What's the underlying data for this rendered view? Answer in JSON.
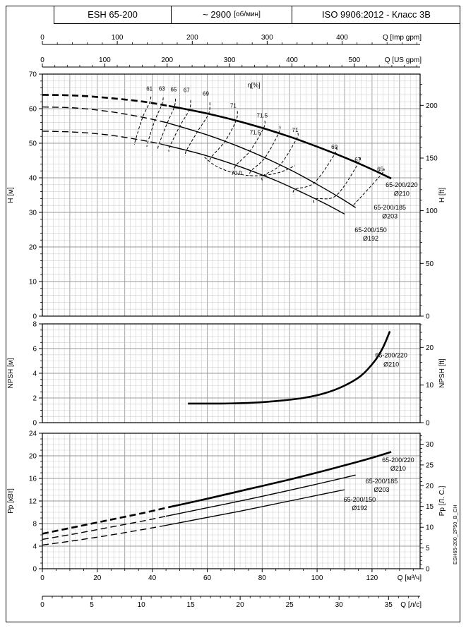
{
  "header": {
    "model": "ESH 65-200",
    "speed_value": "~ 2900",
    "speed_unit": "[об/мин]",
    "standard": "ISO 9906:2012 - Класс 3В"
  },
  "side_code": "ESH65-200_2P50_B_CH",
  "colors": {
    "curve": "#000000",
    "grid_minor": "#cfcfcf",
    "grid_major": "#9a9a9a",
    "frame": "#000000"
  },
  "x_axes": [
    {
      "id": "imp-gpm",
      "title": "Q [Imp gpm]",
      "labels": [
        0,
        100,
        200,
        300,
        400
      ],
      "minor": 20,
      "factor": 0.27276
    },
    {
      "id": "us-gpm",
      "title": "Q [US gpm]",
      "labels": [
        0,
        100,
        200,
        300,
        400,
        500
      ],
      "minor": 20,
      "factor": 0.22712
    },
    {
      "id": "m3h",
      "title": "Q [м³/ч]",
      "labels": [
        0,
        20,
        40,
        60,
        80,
        100,
        120
      ],
      "minor": 5,
      "factor": 1
    },
    {
      "id": "ls",
      "title": "Q [л/с]",
      "labels": [
        0,
        5,
        10,
        15,
        20,
        25,
        30,
        35
      ],
      "minor": 1,
      "factor": 3.6
    }
  ],
  "chart_data": [
    {
      "id": "head",
      "type": "line",
      "title": "Head curves",
      "ylabel_left": "H [м]",
      "ylabel_right": "H [ft]",
      "xlim": [
        0,
        137.5
      ],
      "ylim": [
        0,
        70
      ],
      "yticks": [
        0,
        10,
        20,
        30,
        40,
        50,
        60,
        70
      ],
      "y_minor": 2,
      "x_minor": 2,
      "x_major": 10,
      "right_axis": {
        "unit": "ft",
        "labels": [
          0,
          50,
          100,
          150,
          200
        ],
        "to_left_factor": 0.3048,
        "minor": 10
      },
      "series": [
        {
          "name": "65-200/220 Ø210",
          "width": 2.6,
          "dash": [
            [
              0,
              64
            ],
            [
              12,
              63.8
            ],
            [
              24,
              63.1
            ],
            [
              36,
              62.1
            ],
            [
              46,
              60.8
            ]
          ],
          "solid": [
            [
              46,
              60.8
            ],
            [
              60,
              58.6
            ],
            [
              75,
              55.6
            ],
            [
              90,
              51.9
            ],
            [
              105,
              47.5
            ],
            [
              115,
              44.2
            ],
            [
              122,
              41.7
            ],
            [
              127,
              39.8
            ]
          ]
        },
        {
          "name": "65-200/185 Ø203",
          "width": 1.4,
          "dash": [
            [
              0,
              60.5
            ],
            [
              12,
              60.2
            ],
            [
              24,
              59.2
            ],
            [
              36,
              57.6
            ],
            [
              45,
              56
            ]
          ],
          "solid": [
            [
              45,
              56
            ],
            [
              60,
              52.4
            ],
            [
              75,
              47.9
            ],
            [
              90,
              42.4
            ],
            [
              100,
              38.1
            ],
            [
              108,
              34.4
            ],
            [
              114,
              31.4
            ]
          ]
        },
        {
          "name": "65-200/150 Ø192",
          "width": 1.4,
          "dash": [
            [
              0,
              53.5
            ],
            [
              12,
              53.2
            ],
            [
              24,
              52.4
            ],
            [
              36,
              50.9
            ],
            [
              43,
              49.8
            ]
          ],
          "solid": [
            [
              43,
              49.8
            ],
            [
              58,
              46.8
            ],
            [
              72,
              43.2
            ],
            [
              85,
              39.2
            ],
            [
              95,
              35.6
            ],
            [
              103,
              32.5
            ],
            [
              110,
              29.5
            ]
          ]
        }
      ],
      "contours": [
        {
          "value": "61",
          "points": [
            [
              39.5,
              63.5
            ],
            [
              39,
              61.7
            ],
            [
              36.5,
              57.5
            ],
            [
              34,
              51.2
            ],
            [
              33.5,
              49.6
            ]
          ]
        },
        {
          "value": "63",
          "points": [
            [
              44,
              63.2
            ],
            [
              43.5,
              61.2
            ],
            [
              41,
              56.7
            ],
            [
              38.5,
              50.6
            ],
            [
              38,
              49
            ]
          ]
        },
        {
          "value": "65",
          "points": [
            [
              48.5,
              62.9
            ],
            [
              48,
              60.5
            ],
            [
              45.5,
              55.9
            ],
            [
              42.5,
              49.9
            ],
            [
              42,
              48.3
            ]
          ]
        },
        {
          "value": "67",
          "points": [
            [
              54,
              62.5
            ],
            [
              53.5,
              59.7
            ],
            [
              50,
              54.9
            ],
            [
              46.5,
              49.2
            ],
            [
              46,
              47.6
            ]
          ]
        },
        {
          "value": "69",
          "points": [
            [
              61,
              61.8
            ],
            [
              60.5,
              58.5
            ],
            [
              56.5,
              53.4
            ],
            [
              52.5,
              48
            ],
            [
              52,
              46.4
            ]
          ]
        },
        {
          "value": "71",
          "points": [
            [
              71,
              59.3
            ],
            [
              70.5,
              56.5
            ],
            [
              66.5,
              50.6
            ],
            [
              61.5,
              46
            ],
            [
              61,
              44.5
            ]
          ]
        },
        {
          "value": "71.5L",
          "points": [
            [
              81,
              56.5
            ],
            [
              80.5,
              54.3
            ],
            [
              75.5,
              47.7
            ],
            [
              70.5,
              43.65
            ],
            [
              70,
              42.2
            ]
          ]
        },
        {
          "value": "71.5R",
          "points": [
            [
              86.5,
              55
            ],
            [
              86,
              52.9
            ],
            [
              81,
              45.8
            ],
            [
              76,
              42.05
            ],
            [
              75.5,
              40.6
            ]
          ]
        },
        {
          "value": "71R",
          "points": [
            [
              93,
              53
            ],
            [
              92.5,
              51.2
            ],
            [
              86.5,
              43.7
            ],
            [
              80.5,
              40.7
            ],
            [
              80,
              39.2
            ]
          ]
        },
        {
          "value": "69R",
          "points": [
            [
              107,
              48.8
            ],
            [
              106.5,
              47
            ],
            [
              99,
              38.6
            ],
            [
              92,
              36.7
            ],
            [
              91.5,
              35.2
            ]
          ]
        },
        {
          "value": "67R",
          "points": [
            [
              115.5,
              45.8
            ],
            [
              115,
              44.2
            ],
            [
              107,
              34.9
            ],
            [
              99.5,
              33.9
            ],
            [
              99,
              32.4
            ]
          ]
        },
        {
          "value": "65R",
          "points": [
            [
              124,
              42.7
            ],
            [
              123.5,
              41.1
            ],
            [
              113,
              31.9
            ]
          ]
        },
        {
          "value": "70.0",
          "points": [
            [
              59,
              46
            ],
            [
              63,
              43.5
            ],
            [
              70,
              41.3
            ],
            [
              78,
              40.6
            ],
            [
              86,
              41.5
            ],
            [
              92,
              43.5
            ]
          ]
        }
      ],
      "labels": [
        {
          "text": "η[%]",
          "x": 77,
          "y": 66.2,
          "size": 9
        },
        {
          "text": "61",
          "x": 39,
          "y": 65.2,
          "size": 8
        },
        {
          "text": "63",
          "x": 43.5,
          "y": 65.2,
          "size": 8
        },
        {
          "text": "65",
          "x": 47.8,
          "y": 65,
          "size": 8
        },
        {
          "text": "67",
          "x": 52.5,
          "y": 64.8,
          "size": 8
        },
        {
          "text": "69",
          "x": 59.5,
          "y": 63.8,
          "size": 8
        },
        {
          "text": "71",
          "x": 69.5,
          "y": 60.3,
          "size": 8
        },
        {
          "text": "71.5",
          "x": 80,
          "y": 57.5,
          "size": 8
        },
        {
          "text": "71.5",
          "x": 77.5,
          "y": 52.6,
          "size": 8
        },
        {
          "text": "71",
          "x": 92,
          "y": 53.3,
          "size": 8
        },
        {
          "text": "69",
          "x": 106.3,
          "y": 48.4,
          "size": 8
        },
        {
          "text": "67",
          "x": 114.8,
          "y": 44.7,
          "size": 8
        },
        {
          "text": "65",
          "x": 123,
          "y": 41.9,
          "size": 8
        },
        {
          "text": "70.0",
          "x": 70.7,
          "y": 40.8,
          "size": 8
        },
        {
          "text": "65-200/220",
          "x": 130.8,
          "y": 37.3,
          "size": 9
        },
        {
          "text": "Ø210",
          "x": 130.8,
          "y": 34.8,
          "size": 9
        },
        {
          "text": "65-200/185",
          "x": 126.5,
          "y": 30.8,
          "size": 9
        },
        {
          "text": "Ø203",
          "x": 126.5,
          "y": 28.3,
          "size": 9
        },
        {
          "text": "65-200/150",
          "x": 119.5,
          "y": 24.3,
          "size": 9
        },
        {
          "text": "Ø192",
          "x": 119.5,
          "y": 21.8,
          "size": 9
        }
      ]
    },
    {
      "id": "npsh",
      "type": "line",
      "title": "NPSH curve",
      "ylabel_left": "NPSH [м]",
      "ylabel_right": "NPSH [ft]",
      "xlim": [
        0,
        137.5
      ],
      "ylim": [
        0,
        8
      ],
      "yticks": [
        0,
        2,
        4,
        6,
        8
      ],
      "y_minor": 0.5,
      "x_minor": 2,
      "x_major": 10,
      "right_axis": {
        "unit": "ft",
        "labels": [
          0,
          10,
          20
        ],
        "to_left_factor": 0.3048,
        "minor": 2
      },
      "series": [
        {
          "name": "65-200/220 Ø210",
          "width": 2.6,
          "dash": [],
          "solid": [
            [
              53,
              1.55
            ],
            [
              65,
              1.55
            ],
            [
              75,
              1.6
            ],
            [
              85,
              1.75
            ],
            [
              95,
              2
            ],
            [
              103,
              2.4
            ],
            [
              110,
              3
            ],
            [
              116,
              3.8
            ],
            [
              121,
              5
            ],
            [
              124,
              6.1
            ],
            [
              126.5,
              7.4
            ]
          ]
        }
      ],
      "contours": [],
      "labels": [
        {
          "text": "65-200/220",
          "x": 127,
          "y": 5.3,
          "size": 9
        },
        {
          "text": "Ø210",
          "x": 127,
          "y": 4.55,
          "size": 9
        }
      ]
    },
    {
      "id": "power",
      "type": "line",
      "title": "Power curves",
      "ylabel_left": "Pp [кВт]",
      "ylabel_right": "Pp [Л. С.]",
      "xlim": [
        0,
        137.5
      ],
      "ylim": [
        0,
        24
      ],
      "yticks": [
        0,
        4,
        8,
        12,
        16,
        20,
        24
      ],
      "y_minor": 1,
      "x_minor": 2,
      "x_major": 10,
      "right_axis": {
        "unit": "л.с.",
        "labels": [
          0,
          5,
          10,
          15,
          20,
          25,
          30
        ],
        "to_left_factor": 0.7355,
        "minor": 1
      },
      "series": [
        {
          "name": "65-200/220 Ø210",
          "width": 2.6,
          "dash": [
            [
              0,
              6.2
            ],
            [
              12,
              7.4
            ],
            [
              24,
              8.6
            ],
            [
              36,
              9.8
            ],
            [
              46,
              10.9
            ]
          ],
          "solid": [
            [
              46,
              10.9
            ],
            [
              60,
              12.4
            ],
            [
              75,
              14.1
            ],
            [
              90,
              15.8
            ],
            [
              103,
              17.4
            ],
            [
              113,
              18.7
            ],
            [
              121,
              19.8
            ],
            [
              127,
              20.7
            ]
          ]
        },
        {
          "name": "65-200/185 Ø203",
          "width": 1.4,
          "dash": [
            [
              0,
              5.2
            ],
            [
              12,
              6.2
            ],
            [
              24,
              7.3
            ],
            [
              36,
              8.4
            ],
            [
              45,
              9.3
            ]
          ],
          "solid": [
            [
              45,
              9.3
            ],
            [
              60,
              10.8
            ],
            [
              75,
              12.3
            ],
            [
              90,
              13.9
            ],
            [
              100,
              15
            ],
            [
              108,
              15.9
            ],
            [
              114,
              16.6
            ]
          ]
        },
        {
          "name": "65-200/150 Ø192",
          "width": 1.4,
          "dash": [
            [
              0,
              4.2
            ],
            [
              12,
              5
            ],
            [
              24,
              5.9
            ],
            [
              36,
              6.9
            ],
            [
              43,
              7.5
            ]
          ],
          "solid": [
            [
              43,
              7.5
            ],
            [
              58,
              8.9
            ],
            [
              72,
              10.2
            ],
            [
              85,
              11.5
            ],
            [
              95,
              12.5
            ],
            [
              103,
              13.3
            ],
            [
              110,
              14
            ]
          ]
        }
      ],
      "contours": [],
      "labels": [
        {
          "text": "65-200/220",
          "x": 129.5,
          "y": 18.9,
          "size": 9
        },
        {
          "text": "Ø210",
          "x": 129.5,
          "y": 17.4,
          "size": 9
        },
        {
          "text": "65-200/185",
          "x": 123.5,
          "y": 15.1,
          "size": 9
        },
        {
          "text": "Ø203",
          "x": 123.5,
          "y": 13.6,
          "size": 9
        },
        {
          "text": "65-200/150",
          "x": 115.5,
          "y": 11.9,
          "size": 9
        },
        {
          "text": "Ø192",
          "x": 115.5,
          "y": 10.4,
          "size": 9
        }
      ]
    }
  ]
}
